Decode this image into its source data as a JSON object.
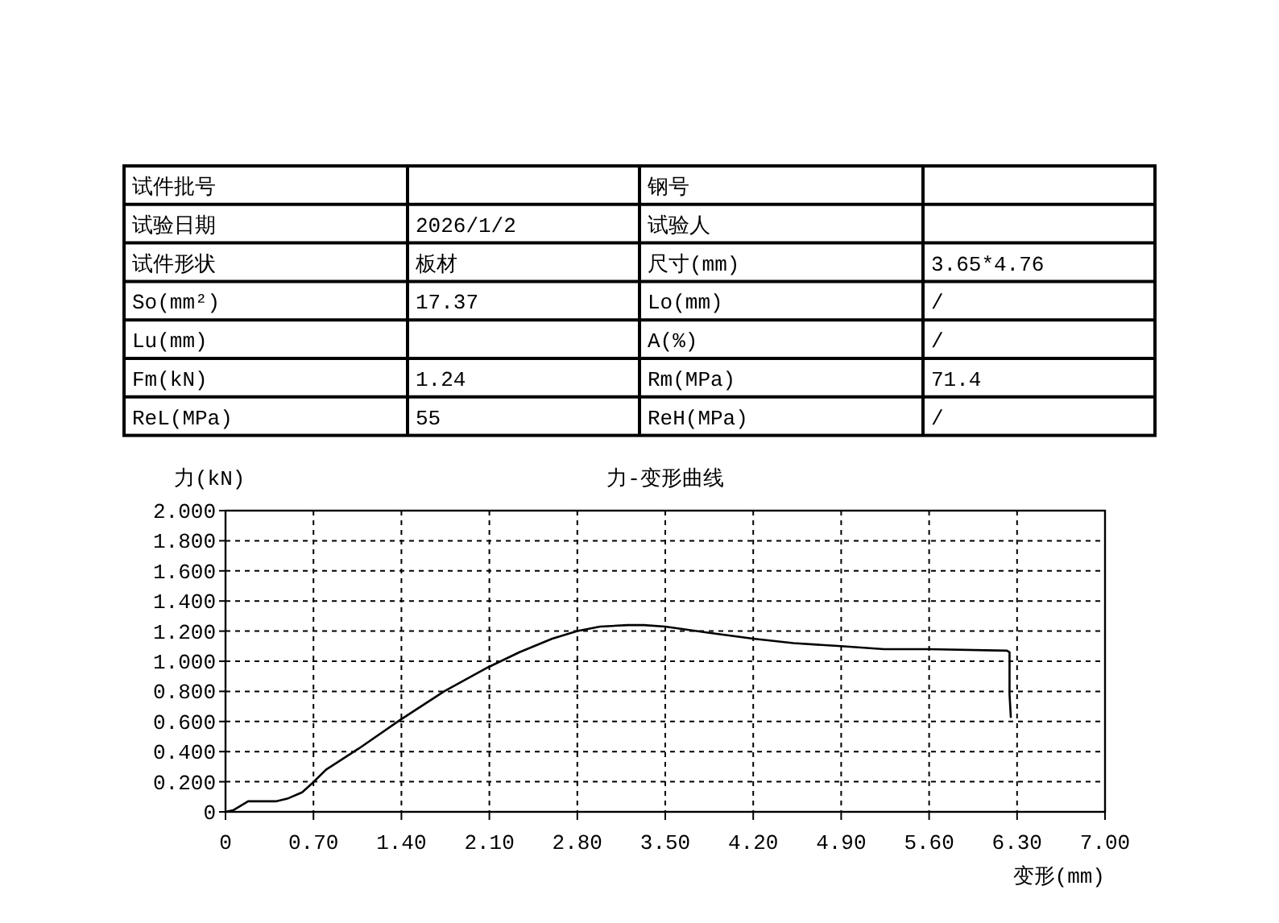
{
  "chart_data": [
    {
      "type": "other",
      "annotations": [
        "试件批号",
        null,
        "钢号",
        null,
        "试验日期",
        "2026/1/2",
        "试验人",
        null,
        "试件形状",
        "板材",
        "尺寸(mm)",
        "3.65*4.76",
        "So(mm²)",
        "17.37",
        "Lo(mm)",
        "/",
        "Lu(mm)",
        null,
        "A(%)",
        "/",
        "Fm(kN)",
        "1.24",
        "Rm(MPa)",
        "71.4",
        "ReL(MPa)",
        "55",
        "ReH(MPa)",
        "/"
      ]
    },
    {
      "type": "line",
      "title": "力-变形曲线",
      "xlabel": "变形(mm)",
      "ylabel": "力(kN)",
      "x": [
        0,
        0.06,
        0.18,
        0.25,
        0.4,
        0.5,
        0.61,
        0.69,
        0.8,
        1.06,
        1.39,
        1.74,
        2.09,
        2.34,
        2.6,
        2.8,
        2.98,
        3.2,
        3.33,
        3.5,
        3.84,
        4.2,
        4.52,
        4.9,
        5.24,
        5.6,
        6.22,
        6.24,
        6.24,
        6.25
      ],
      "series": [
        {
          "color": "#000000",
          "values": [
            0,
            0.01,
            0.07,
            0.07,
            0.07,
            0.09,
            0.13,
            0.19,
            0.28,
            0.42,
            0.61,
            0.8,
            0.96,
            1.06,
            1.15,
            1.2,
            1.23,
            1.24,
            1.24,
            1.23,
            1.19,
            1.15,
            1.12,
            1.1,
            1.08,
            1.08,
            1.07,
            1.06,
            0.78,
            0.63
          ]
        }
      ],
      "xlim": [
        0,
        7
      ],
      "ylim": [
        0,
        2
      ],
      "xticks": [
        0,
        {
          "value": 0.7,
          "label": "0.70"
        },
        {
          "value": 1.4,
          "label": "1.40"
        },
        {
          "value": 2.1,
          "label": "2.10"
        },
        {
          "value": 2.8,
          "label": "2.80"
        },
        {
          "value": 3.5,
          "label": "3.50"
        },
        {
          "value": 4.2,
          "label": "4.20"
        },
        {
          "value": 4.9,
          "label": "4.90"
        },
        {
          "value": 5.6,
          "label": "5.60"
        },
        {
          "value": 6.3,
          "label": "6.30"
        },
        {
          "value": 7,
          "label": "7.00"
        }
      ],
      "yticks": [
        0,
        {
          "value": 0.2,
          "label": "0.200"
        },
        {
          "value": 0.4,
          "label": "0.400"
        },
        {
          "value": 0.6,
          "label": "0.600"
        },
        {
          "value": 0.8,
          "label": "0.800"
        },
        {
          "value": 1.0,
          "label": "1.000"
        },
        {
          "value": 1.2,
          "label": "1.200"
        },
        {
          "value": 1.4,
          "label": "1.400"
        },
        {
          "value": 1.6,
          "label": "1.600"
        },
        {
          "value": 1.8,
          "label": "1.800"
        },
        {
          "value": 2.0,
          "label": "2.000"
        }
      ],
      "grid": true
    }
  ]
}
